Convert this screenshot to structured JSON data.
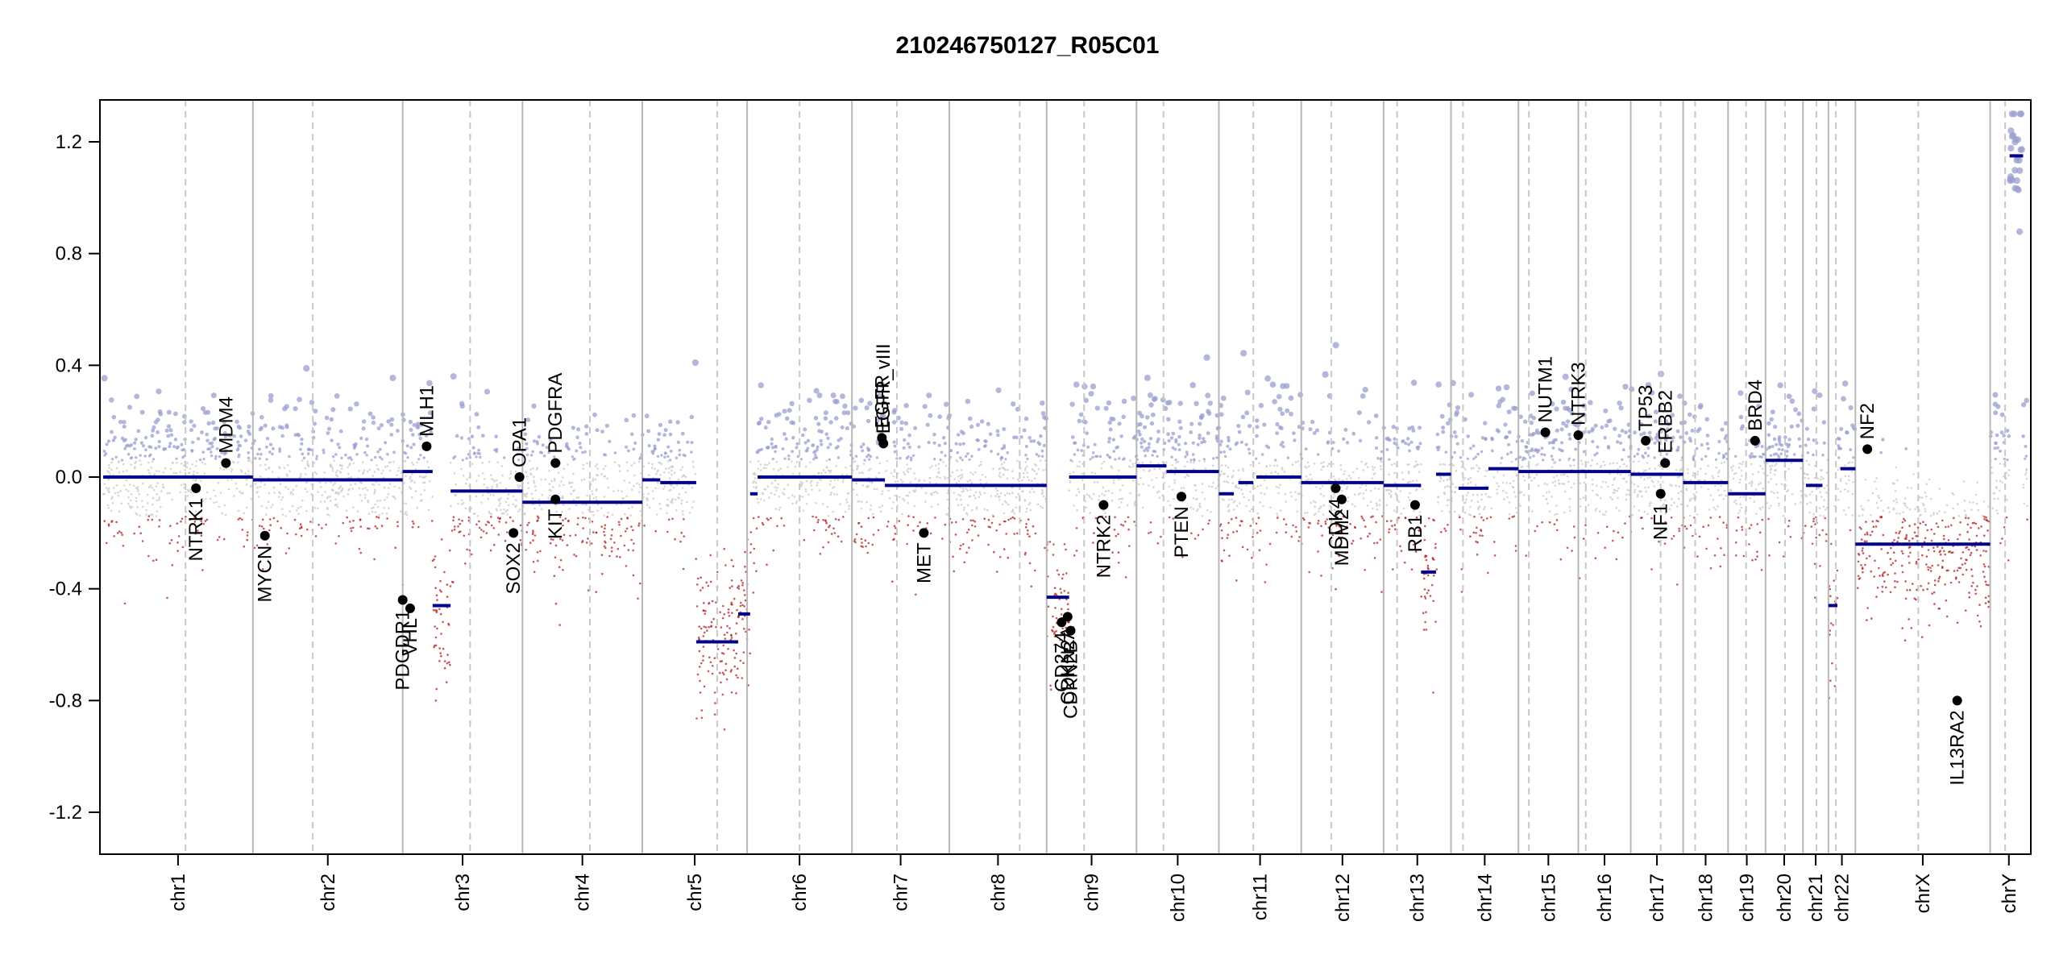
{
  "chart_data": {
    "type": "scatter",
    "title": "210246750127_R05C01",
    "xlabel": "",
    "ylabel": "",
    "ylim": [
      -1.35,
      1.35
    ],
    "y_ticks": [
      1.2,
      0.8,
      0.4,
      0.0,
      -0.4,
      -0.8,
      -1.2
    ],
    "y_tick_labels": [
      "1.2",
      "0.8",
      "0.4",
      "0.0",
      "-0.4",
      "-0.8",
      "-1.2"
    ],
    "chromosomes": [
      {
        "name": "chr1",
        "start": 0,
        "end": 1
      },
      {
        "name": "chr2",
        "start": 1,
        "end": 2
      },
      {
        "name": "chr3",
        "start": 2,
        "end": 2.8
      },
      {
        "name": "chr4",
        "start": 2.8,
        "end": 3.6
      },
      {
        "name": "chr5",
        "start": 3.6,
        "end": 4.3
      },
      {
        "name": "chr6",
        "start": 4.3,
        "end": 5.0
      },
      {
        "name": "chr7",
        "start": 5.0,
        "end": 5.65
      },
      {
        "name": "chr8",
        "start": 5.65,
        "end": 6.3
      },
      {
        "name": "chr9",
        "start": 6.3,
        "end": 6.9
      },
      {
        "name": "chr10",
        "start": 6.9,
        "end": 7.45
      },
      {
        "name": "chr11",
        "start": 7.45,
        "end": 8.0
      },
      {
        "name": "chr12",
        "start": 8.0,
        "end": 8.55
      },
      {
        "name": "chr13",
        "start": 8.55,
        "end": 9.0
      },
      {
        "name": "chr14",
        "start": 9.0,
        "end": 9.45
      },
      {
        "name": "chr15",
        "start": 9.45,
        "end": 9.85
      },
      {
        "name": "chr16",
        "start": 9.85,
        "end": 10.2
      },
      {
        "name": "chr17",
        "start": 10.2,
        "end": 10.55
      },
      {
        "name": "chr18",
        "start": 10.55,
        "end": 10.85
      },
      {
        "name": "chr19",
        "start": 10.85,
        "end": 11.1
      },
      {
        "name": "chr20",
        "start": 11.1,
        "end": 11.35
      },
      {
        "name": "chr21",
        "start": 11.35,
        "end": 11.52
      },
      {
        "name": "chr22",
        "start": 11.52,
        "end": 11.7
      },
      {
        "name": "chrX",
        "start": 11.7,
        "end": 12.6
      },
      {
        "name": "chrY",
        "start": 12.6,
        "end": 12.85
      }
    ],
    "centromeres": [
      0.55,
      1.4,
      2.45,
      3.25,
      4.1,
      4.65,
      5.3,
      6.12,
      6.55,
      7.08,
      7.68,
      8.2,
      8.64,
      9.08,
      9.52,
      9.9,
      10.4,
      10.63,
      10.97,
      11.23,
      11.44,
      11.57,
      12.12,
      12.7
    ],
    "segments": [
      {
        "start": 0.0,
        "end": 1.0,
        "value": 0.0
      },
      {
        "start": 1.0,
        "end": 2.0,
        "value": -0.01
      },
      {
        "start": 2.0,
        "end": 2.2,
        "value": 0.02
      },
      {
        "start": 2.2,
        "end": 2.32,
        "value": -0.46
      },
      {
        "start": 2.32,
        "end": 2.8,
        "value": -0.05
      },
      {
        "start": 2.8,
        "end": 3.6,
        "value": -0.09
      },
      {
        "start": 3.6,
        "end": 3.72,
        "value": -0.01
      },
      {
        "start": 3.72,
        "end": 3.96,
        "value": -0.02
      },
      {
        "start": 3.96,
        "end": 4.24,
        "value": -0.59
      },
      {
        "start": 4.24,
        "end": 4.32,
        "value": -0.49
      },
      {
        "start": 4.32,
        "end": 4.37,
        "value": -0.06
      },
      {
        "start": 4.37,
        "end": 5.0,
        "value": 0.0
      },
      {
        "start": 5.0,
        "end": 5.22,
        "value": -0.01
      },
      {
        "start": 5.22,
        "end": 5.65,
        "value": -0.03
      },
      {
        "start": 5.65,
        "end": 6.3,
        "value": -0.03
      },
      {
        "start": 6.3,
        "end": 6.45,
        "value": -0.43
      },
      {
        "start": 6.45,
        "end": 6.9,
        "value": 0.0
      },
      {
        "start": 6.9,
        "end": 7.1,
        "value": 0.04
      },
      {
        "start": 7.1,
        "end": 7.45,
        "value": 0.02
      },
      {
        "start": 7.45,
        "end": 7.55,
        "value": -0.06
      },
      {
        "start": 7.58,
        "end": 7.68,
        "value": -0.02
      },
      {
        "start": 7.7,
        "end": 8.0,
        "value": 0.0
      },
      {
        "start": 8.0,
        "end": 8.55,
        "value": -0.02
      },
      {
        "start": 8.55,
        "end": 8.8,
        "value": -0.03
      },
      {
        "start": 8.8,
        "end": 8.9,
        "value": -0.34
      },
      {
        "start": 8.9,
        "end": 9.0,
        "value": 0.01
      },
      {
        "start": 9.05,
        "end": 9.25,
        "value": -0.04
      },
      {
        "start": 9.25,
        "end": 9.45,
        "value": 0.03
      },
      {
        "start": 9.45,
        "end": 9.85,
        "value": 0.02
      },
      {
        "start": 9.85,
        "end": 10.2,
        "value": 0.02
      },
      {
        "start": 10.2,
        "end": 10.55,
        "value": 0.01
      },
      {
        "start": 10.55,
        "end": 10.85,
        "value": -0.02
      },
      {
        "start": 10.85,
        "end": 11.1,
        "value": -0.06
      },
      {
        "start": 11.1,
        "end": 11.35,
        "value": 0.06
      },
      {
        "start": 11.37,
        "end": 11.48,
        "value": -0.03
      },
      {
        "start": 11.52,
        "end": 11.58,
        "value": -0.46
      },
      {
        "start": 11.6,
        "end": 11.7,
        "value": 0.03
      },
      {
        "start": 11.7,
        "end": 12.6,
        "value": -0.24
      },
      {
        "start": 12.73,
        "end": 12.82,
        "value": 1.15
      }
    ],
    "genes": [
      {
        "name": "NTRK1",
        "x": 0.62,
        "y": -0.04,
        "side": "below"
      },
      {
        "name": "MDM4",
        "x": 0.82,
        "y": 0.05,
        "side": "above"
      },
      {
        "name": "MYCN",
        "x": 1.08,
        "y": -0.21,
        "side": "below"
      },
      {
        "name": "PDGDR1",
        "x": 2.0,
        "y": -0.44,
        "side": "below"
      },
      {
        "name": "VHL",
        "x": 2.05,
        "y": -0.47,
        "side": "below"
      },
      {
        "name": "MLH1",
        "x": 2.16,
        "y": 0.11,
        "side": "above"
      },
      {
        "name": "SOX2",
        "x": 2.74,
        "y": -0.2,
        "side": "below"
      },
      {
        "name": "OPA1",
        "x": 2.78,
        "y": 0.0,
        "side": "above"
      },
      {
        "name": "PDGFRA",
        "x": 3.02,
        "y": 0.05,
        "side": "above"
      },
      {
        "name": "KIT",
        "x": 3.02,
        "y": -0.08,
        "side": "below"
      },
      {
        "name": "EGFR",
        "x": 5.2,
        "y": 0.14,
        "side": "above"
      },
      {
        "name": "EGFR_vIII",
        "x": 5.21,
        "y": 0.12,
        "side": "above"
      },
      {
        "name": "MET",
        "x": 5.48,
        "y": -0.2,
        "side": "below"
      },
      {
        "name": "CD274",
        "x": 6.4,
        "y": -0.52,
        "side": "below"
      },
      {
        "name": "CDKN2A",
        "x": 6.44,
        "y": -0.5,
        "side": "below"
      },
      {
        "name": "CDKN2B",
        "x": 6.46,
        "y": -0.55,
        "side": "below"
      },
      {
        "name": "NTRK2",
        "x": 6.68,
        "y": -0.1,
        "side": "below"
      },
      {
        "name": "PTEN",
        "x": 7.2,
        "y": -0.07,
        "side": "below"
      },
      {
        "name": "CDK4",
        "x": 8.23,
        "y": -0.04,
        "side": "below"
      },
      {
        "name": "MDM2",
        "x": 8.27,
        "y": -0.08,
        "side": "below"
      },
      {
        "name": "RB1",
        "x": 8.76,
        "y": -0.1,
        "side": "below"
      },
      {
        "name": "NUTM1",
        "x": 9.63,
        "y": 0.16,
        "side": "above"
      },
      {
        "name": "NTRK3",
        "x": 9.85,
        "y": 0.15,
        "side": "above"
      },
      {
        "name": "TP53",
        "x": 10.3,
        "y": 0.13,
        "side": "above"
      },
      {
        "name": "ERBB2",
        "x": 10.43,
        "y": 0.05,
        "side": "above"
      },
      {
        "name": "NF1",
        "x": 10.4,
        "y": -0.06,
        "side": "below"
      },
      {
        "name": "BRD4",
        "x": 11.03,
        "y": 0.13,
        "side": "above"
      },
      {
        "name": "NF2",
        "x": 11.78,
        "y": 0.1,
        "side": "above"
      },
      {
        "name": "IL13RA2",
        "x": 12.38,
        "y": -0.8,
        "side": "below"
      }
    ],
    "colors": {
      "high": "#9a9fcf",
      "neutral": "#c8c8c8",
      "low": "#b22222",
      "segment": "#00008b",
      "gene": "#000000"
    }
  }
}
